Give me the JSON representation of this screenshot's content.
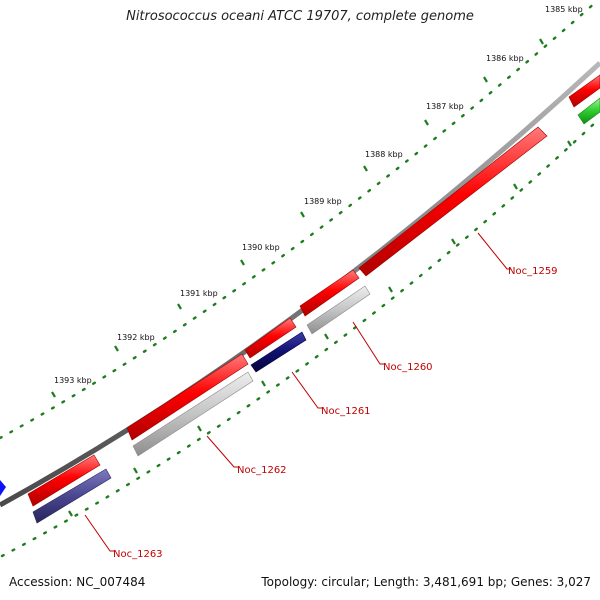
{
  "title": "Nitrosococcus oceani ATCC 19707, complete genome",
  "footer": {
    "accession": "Accession: NC_007484",
    "summary": "Topology: circular; Length: 3,481,691 bp; Genes: 3,027"
  },
  "colors": {
    "backbone": "#7a7a7a",
    "tick_dots": "#1e7d1e",
    "label_lines": "#c00000",
    "forward_gene": "#ff0000",
    "reverse_red": "#ff0000",
    "reverse_grey": "#c4c4c4",
    "reverse_navy": "#101070",
    "reverse_purple": "#4a4690",
    "cds_green": "#2ecc2e",
    "offscreen_blue": "#1010ff"
  },
  "ticks": [
    {
      "label": "1385 kbp"
    },
    {
      "label": "1386 kbp"
    },
    {
      "label": "1387 kbp"
    },
    {
      "label": "1388 kbp"
    },
    {
      "label": "1389 kbp"
    },
    {
      "label": "1390 kbp"
    },
    {
      "label": "1391 kbp"
    },
    {
      "label": "1392 kbp"
    },
    {
      "label": "1393 kbp"
    }
  ],
  "genes": [
    {
      "id": "Noc_1259",
      "label": "Noc_1259"
    },
    {
      "id": "Noc_1260",
      "label": "Noc_1260"
    },
    {
      "id": "Noc_1261",
      "label": "Noc_1261"
    },
    {
      "id": "Noc_1262",
      "label": "Noc_1262"
    },
    {
      "id": "Noc_1263",
      "label": "Noc_1263"
    }
  ]
}
